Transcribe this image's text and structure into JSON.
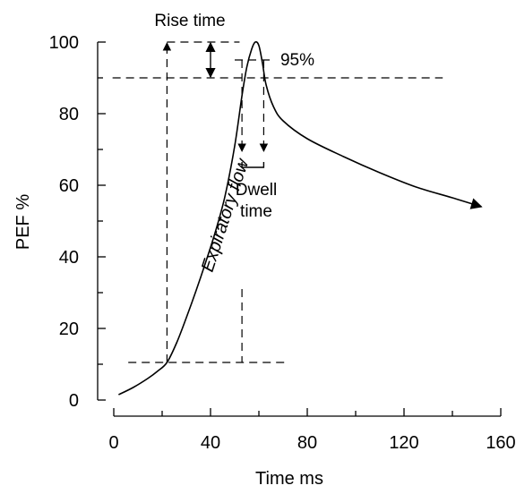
{
  "chart_data": {
    "type": "line",
    "title": "",
    "xlabel": "Time  ms",
    "ylabel": "PEF  %",
    "xlim": [
      0,
      160
    ],
    "ylim": [
      0,
      100
    ],
    "x_ticks": [
      0,
      40,
      80,
      120,
      160
    ],
    "y_ticks": [
      0,
      20,
      40,
      60,
      80,
      100
    ],
    "grid": false,
    "series": [
      {
        "label": "Expiratory flow",
        "points": [
          [
            2,
            1.5
          ],
          [
            8,
            3.5
          ],
          [
            14,
            6
          ],
          [
            18,
            8
          ],
          [
            22,
            10.5
          ],
          [
            26,
            16
          ],
          [
            30,
            23
          ],
          [
            34,
            30.5
          ],
          [
            38,
            38.5
          ],
          [
            42,
            47
          ],
          [
            46,
            57
          ],
          [
            50,
            71
          ],
          [
            53,
            85
          ],
          [
            55,
            93
          ],
          [
            57,
            98
          ],
          [
            58.5,
            100
          ],
          [
            60,
            99
          ],
          [
            61.5,
            94
          ],
          [
            63,
            88
          ],
          [
            66,
            82
          ],
          [
            70,
            78
          ],
          [
            80,
            73
          ],
          [
            95,
            68
          ],
          [
            110,
            63.5
          ],
          [
            125,
            59.5
          ],
          [
            140,
            56.5
          ],
          [
            152,
            54
          ]
        ],
        "end_arrow": true
      }
    ],
    "annotations": {
      "rise_time": "Rise time",
      "ninety_five": "95%",
      "dwell_time_line1": "Dwell",
      "dwell_time_line2": "time"
    },
    "reference_lines": {
      "peak_level": 100,
      "ninety_percent_level": 90,
      "ten_percent_level": 10.5,
      "rise_start_x": 22,
      "rise_end_x": 53,
      "dwell_start_x": 53,
      "dwell_end_x": 62,
      "rise_time_marker_x": 40
    }
  }
}
